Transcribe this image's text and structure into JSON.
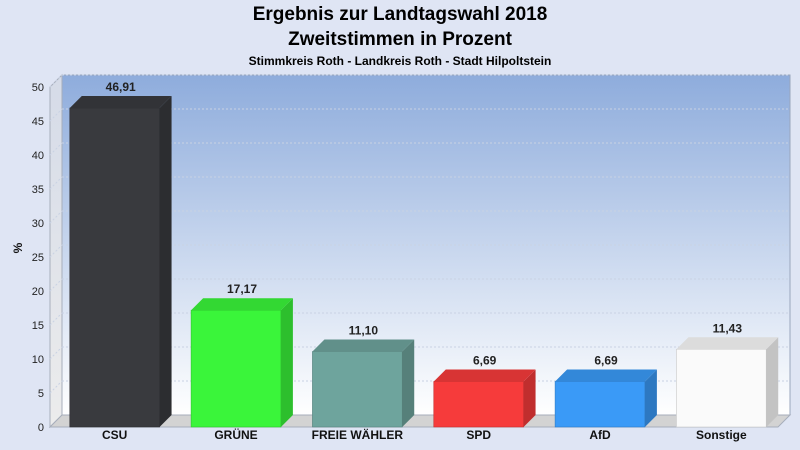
{
  "header": {
    "title": "Ergebnis zur Landtagswahl 2018",
    "subtitle": "Zweitstimmen in Prozent",
    "subsubtitle": "Stimmkreis Roth - Landkreis Roth - Stadt Hilpoltstein"
  },
  "chart_data": {
    "type": "bar",
    "title": "Ergebnis zur Landtagswahl 2018",
    "subtitle": "Zweitstimmen in Prozent",
    "ylabel": "%",
    "xlabel": "",
    "ylim": [
      0,
      50
    ],
    "yticks": [
      0,
      5,
      10,
      15,
      20,
      25,
      30,
      35,
      40,
      45,
      50
    ],
    "grid": true,
    "categories": [
      "CSU",
      "GRÜNE",
      "FREIE WÄHLER",
      "SPD",
      "AfD",
      "Sonstige"
    ],
    "values": [
      46.91,
      17.17,
      11.1,
      6.69,
      6.69,
      11.43
    ],
    "value_labels": [
      "46,91",
      "17,17",
      "11,10",
      "6,69",
      "6,69",
      "11,43"
    ],
    "colors": [
      "#393a3e",
      "#3af53a",
      "#6ea49d",
      "#f63b3b",
      "#3a9af7",
      "#fafafa"
    ]
  }
}
